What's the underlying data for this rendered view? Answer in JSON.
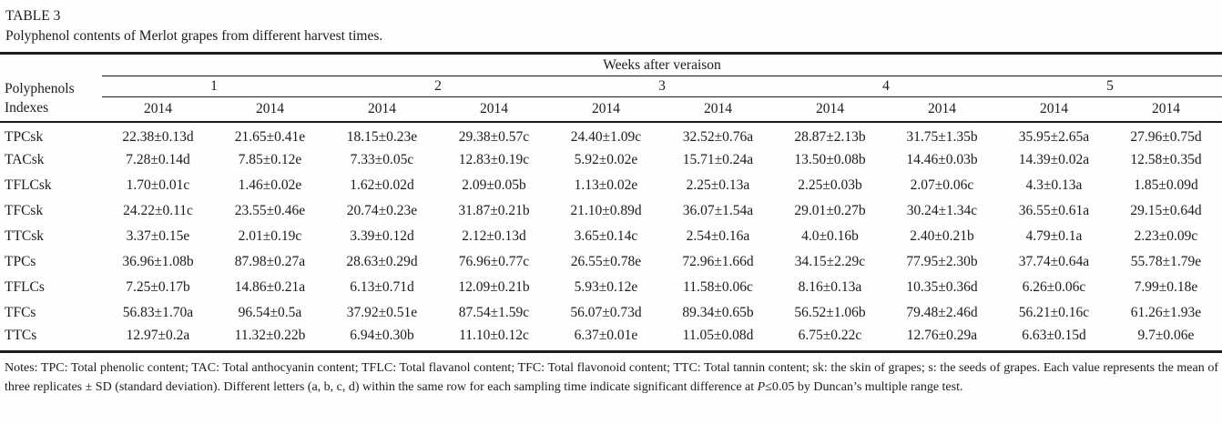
{
  "colors": {
    "text": "#1c1c1c",
    "rule": "#1a1a1a",
    "background": "#fefefe"
  },
  "table": {
    "label": "TABLE 3",
    "caption": "Polyphenol contents of Merlot grapes from different harvest times.",
    "spanner": "Weeks after veraison",
    "row_header_line1": "Polyphenols",
    "row_header_line2": "Indexes",
    "groups": [
      "1",
      "2",
      "3",
      "4",
      "5"
    ],
    "years": [
      "2014",
      "2014",
      "2014",
      "2014",
      "2014",
      "2014",
      "2014",
      "2014",
      "2014",
      "2014"
    ],
    "rows": [
      {
        "index": "TPCsk",
        "values": [
          "22.38±0.13d",
          "21.65±0.41e",
          "18.15±0.23e",
          "29.38±0.57c",
          "24.40±1.09c",
          "32.52±0.76a",
          "28.87±2.13b",
          "31.75±1.35b",
          "35.95±2.65a",
          "27.96±0.75d"
        ]
      },
      {
        "index": "TACsk",
        "values": [
          "7.28±0.14d",
          "7.85±0.12e",
          "7.33±0.05c",
          "12.83±0.19c",
          "5.92±0.02e",
          "15.71±0.24a",
          "13.50±0.08b",
          "14.46±0.03b",
          "14.39±0.02a",
          "12.58±0.35d"
        ]
      },
      {
        "index": "TFLCsk",
        "values": [
          "1.70±0.01c",
          "1.46±0.02e",
          "1.62±0.02d",
          "2.09±0.05b",
          "1.13±0.02e",
          "2.25±0.13a",
          "2.25±0.03b",
          "2.07±0.06c",
          "4.3±0.13a",
          "1.85±0.09d"
        ]
      },
      {
        "index": "TFCsk",
        "values": [
          "24.22±0.11c",
          "23.55±0.46e",
          "20.74±0.23e",
          "31.87±0.21b",
          "21.10±0.89d",
          "36.07±1.54a",
          "29.01±0.27b",
          "30.24±1.34c",
          "36.55±0.61a",
          "29.15±0.64d"
        ]
      },
      {
        "index": "TTCsk",
        "values": [
          "3.37±0.15e",
          "2.01±0.19c",
          "3.39±0.12d",
          "2.12±0.13d",
          "3.65±0.14c",
          "2.54±0.16a",
          "4.0±0.16b",
          "2.40±0.21b",
          "4.79±0.1a",
          "2.23±0.09c"
        ]
      },
      {
        "index": "TPCs",
        "values": [
          "36.96±1.08b",
          "87.98±0.27a",
          "28.63±0.29d",
          "76.96±0.77c",
          "26.55±0.78e",
          "72.96±1.66d",
          "34.15±2.29c",
          "77.95±2.30b",
          "37.74±0.64a",
          "55.78±1.79e"
        ]
      },
      {
        "index": "TFLCs",
        "values": [
          "7.25±0.17b",
          "14.86±0.21a",
          "6.13±0.71d",
          "12.09±0.21b",
          "5.93±0.12e",
          "11.58±0.06c",
          "8.16±0.13a",
          "10.35±0.36d",
          "6.26±0.06c",
          "7.99±0.18e"
        ]
      },
      {
        "index": "TFCs",
        "values": [
          "56.83±1.70a",
          "96.54±0.5a",
          "37.92±0.51e",
          "87.54±1.59c",
          "56.07±0.73d",
          "89.34±0.65b",
          "56.52±1.06b",
          "79.48±2.46d",
          "56.21±0.16c",
          "61.26±1.93e"
        ]
      },
      {
        "index": "TTCs",
        "values": [
          "12.97±0.2a",
          "11.32±0.22b",
          "6.94±0.30b",
          "11.10±0.12c",
          "6.37±0.01e",
          "11.05±0.08d",
          "6.75±0.22c",
          "12.76±0.29a",
          "6.63±0.15d",
          "9.7±0.06e"
        ]
      }
    ]
  },
  "notes": {
    "part1": "Notes: TPC: Total phenolic content; TAC: Total anthocyanin content; TFLC: Total flavanol content; TFC: Total flavonoid content; TTC: Total tannin content; sk: the skin of grapes; s: the seeds of grapes. Each value represents the mean of three replicates ± SD (standard deviation). Different letters (a, b, c, d) within the same row for each sampling time indicate significant difference at ",
    "italic_p": "P",
    "part2": "≤0.05 by Duncan’s multiple range test."
  }
}
